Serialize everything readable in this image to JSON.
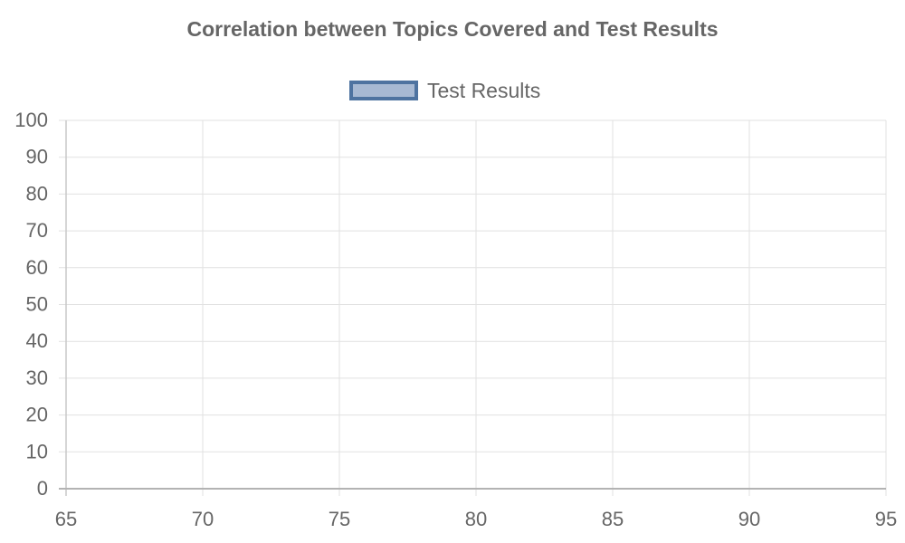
{
  "chart_data": {
    "type": "scatter",
    "title": "Correlation between Topics Covered and Test Results",
    "xlabel": "",
    "ylabel": "",
    "xlim": [
      65,
      95
    ],
    "ylim": [
      0,
      100
    ],
    "x_ticks": [
      65,
      70,
      75,
      80,
      85,
      90,
      95
    ],
    "y_ticks": [
      0,
      10,
      20,
      30,
      40,
      50,
      60,
      70,
      80,
      90,
      100
    ],
    "grid": true,
    "legend_position": "top",
    "series": [
      {
        "name": "Test Results",
        "x": [],
        "y": [],
        "border_color": "#4e73a0",
        "fill_color": "#a7b9d3"
      }
    ]
  }
}
